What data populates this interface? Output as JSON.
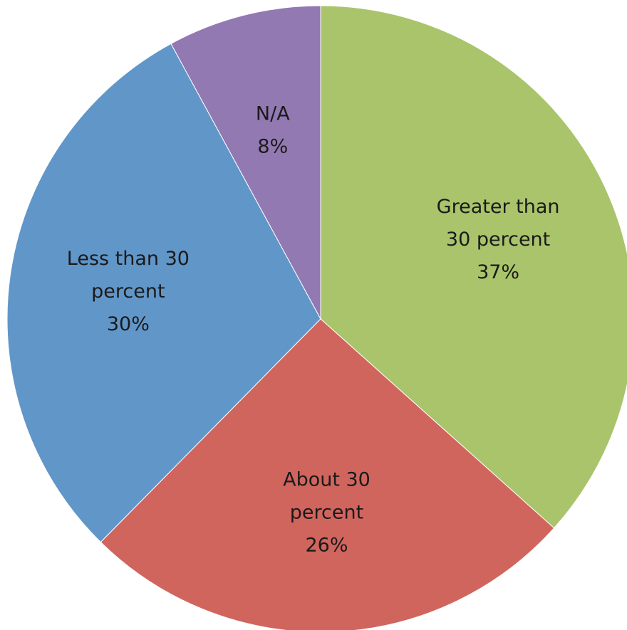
{
  "chart_data": {
    "type": "pie",
    "title": "",
    "start_angle_deg": 0,
    "direction": "clockwise",
    "slices": [
      {
        "label_lines": [
          "Greater than",
          "30 percent"
        ],
        "percent_label": "37%",
        "value": 37,
        "color": "#a9c46b"
      },
      {
        "label_lines": [
          "About 30",
          "percent"
        ],
        "percent_label": "26%",
        "value": 26,
        "color": "#d0655e"
      },
      {
        "label_lines": [
          "Less than 30",
          "percent"
        ],
        "percent_label": "30%",
        "value": 30,
        "color": "#6196c9"
      },
      {
        "label_lines": [
          "N/A"
        ],
        "percent_label": "8%",
        "value": 8,
        "color": "#9279b2"
      }
    ]
  }
}
